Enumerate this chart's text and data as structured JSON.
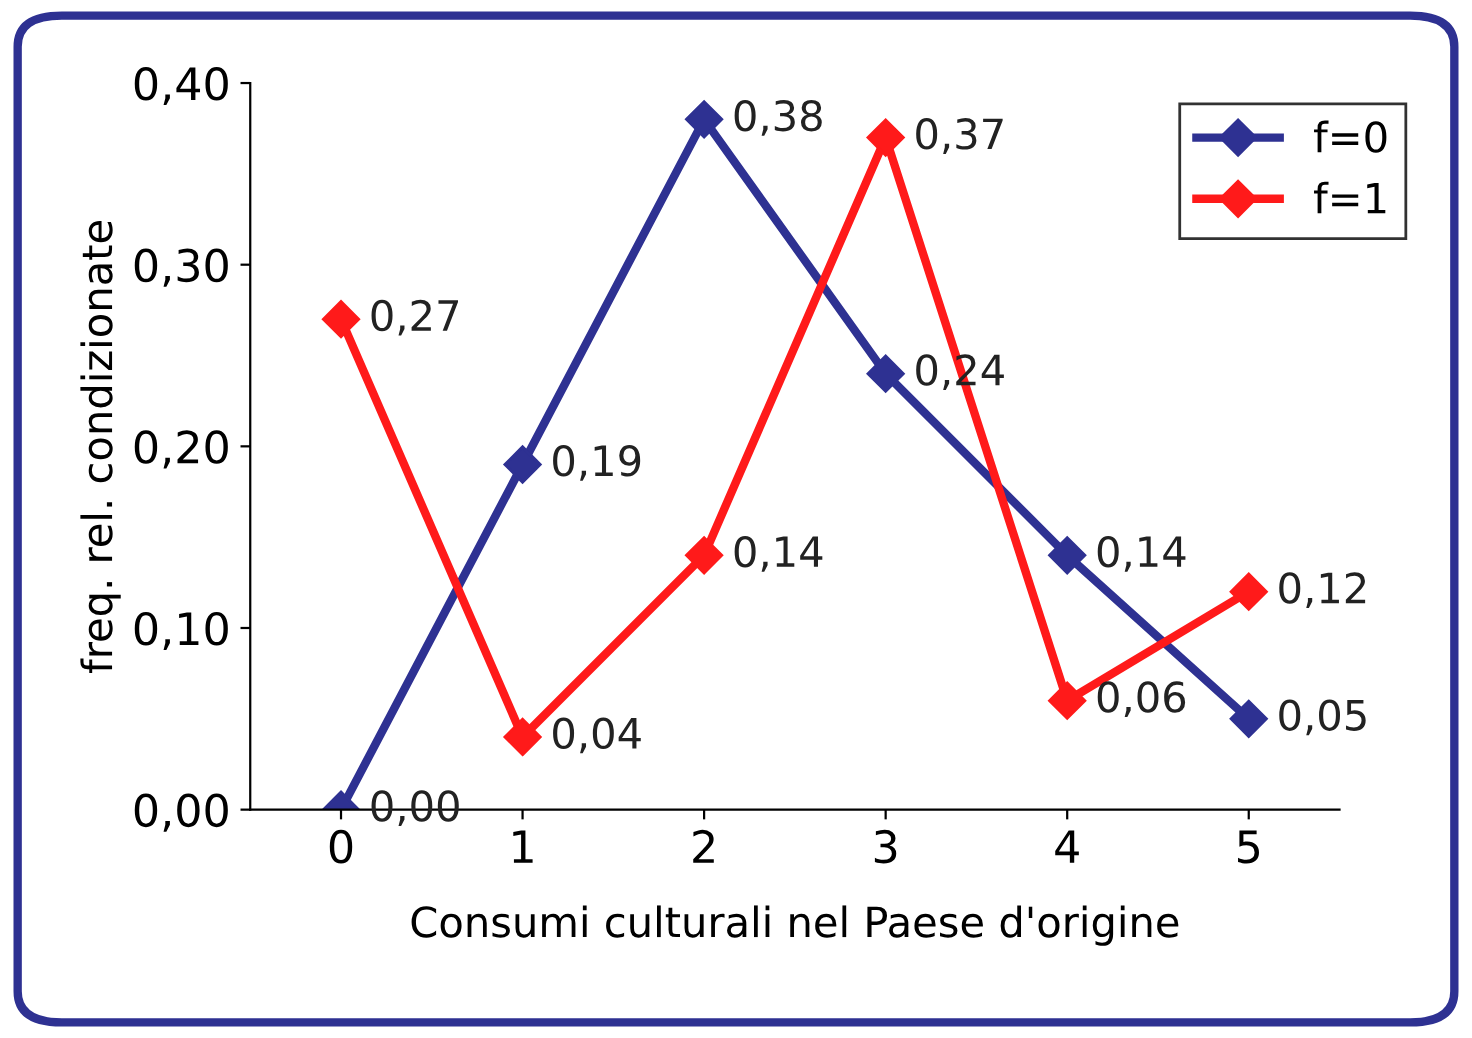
{
  "chart_data": {
    "type": "line",
    "xlabel": "Consumi culturali nel Paese d'origine",
    "ylabel": "freq. rel. condizionate",
    "categories": [
      "0",
      "1",
      "2",
      "3",
      "4",
      "5"
    ],
    "series": [
      {
        "name": "f=0",
        "color": "#2e3192",
        "values": [
          0.0,
          0.19,
          0.38,
          0.24,
          0.14,
          0.05
        ],
        "value_labels": [
          "0,00",
          "0,19",
          "0,38",
          "0,24",
          "0,14",
          "0,05"
        ]
      },
      {
        "name": "f=1",
        "color": "#ff1a1a",
        "values": [
          0.27,
          0.04,
          0.14,
          0.37,
          0.06,
          0.12
        ],
        "value_labels": [
          "0,27",
          "0,04",
          "0,14",
          "0,37",
          "0,06",
          "0,12"
        ]
      }
    ],
    "ylim": [
      0,
      0.4
    ],
    "yticks": [
      {
        "value": 0,
        "label": "0,00"
      },
      {
        "value": 0.1,
        "label": "0,10"
      },
      {
        "value": 0.2,
        "label": "0,20"
      },
      {
        "value": 0.3,
        "label": "0,30"
      },
      {
        "value": 0.4,
        "label": "0,40"
      }
    ],
    "legend": "top right",
    "marker": "diamond",
    "line_style": "solid",
    "grid": false
  }
}
